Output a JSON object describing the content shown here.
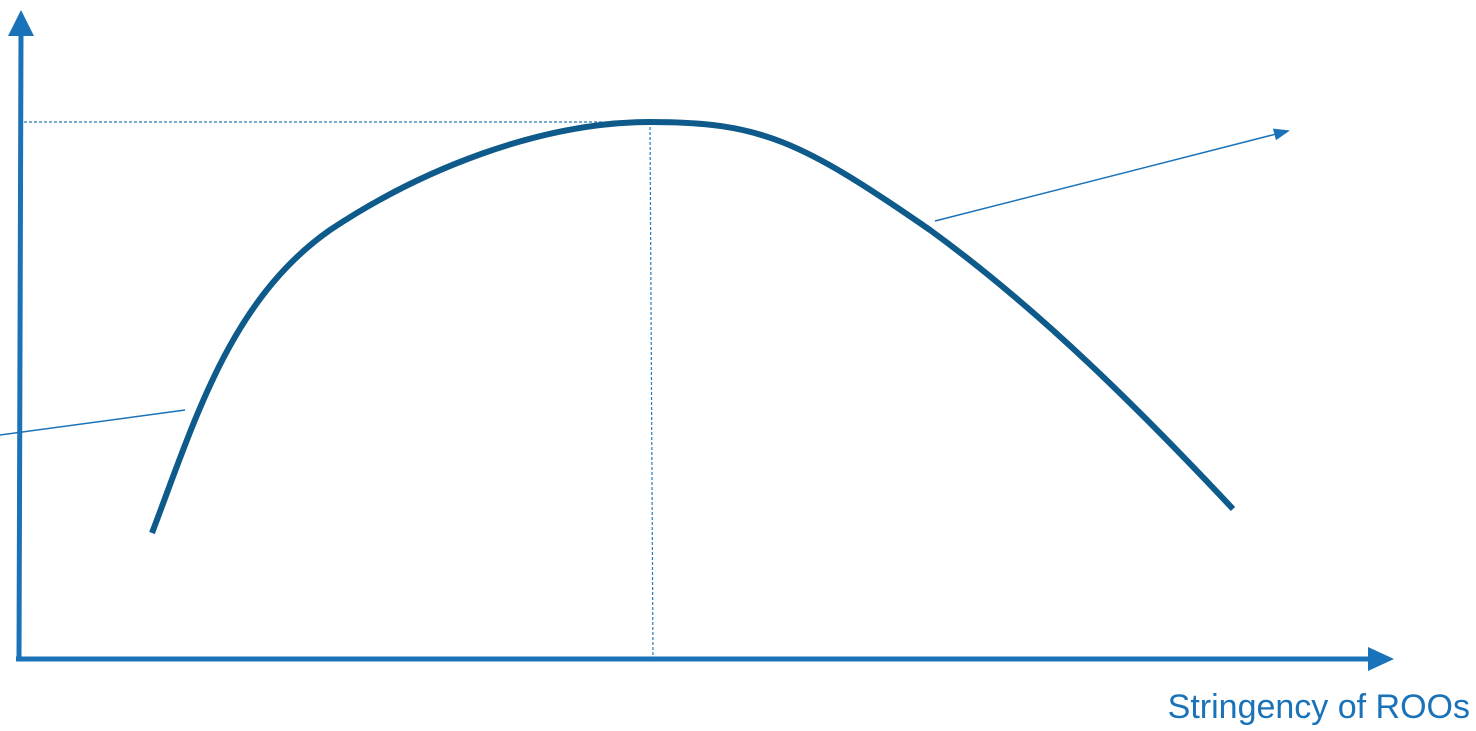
{
  "diagram": {
    "x_axis_label": "Stringency of ROOs"
  },
  "colors": {
    "axis": "#1a72b8",
    "curve": "#0e5a8a",
    "guide": "#2a7ab8",
    "pointer": "#1a72b8",
    "label": "#1a72b8"
  }
}
